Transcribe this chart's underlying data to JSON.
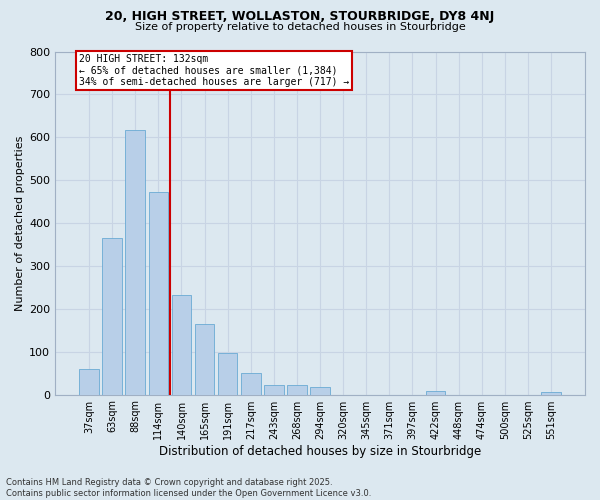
{
  "title1": "20, HIGH STREET, WOLLASTON, STOURBRIDGE, DY8 4NJ",
  "title2": "Size of property relative to detached houses in Stourbridge",
  "xlabel": "Distribution of detached houses by size in Stourbridge",
  "ylabel": "Number of detached properties",
  "bar_labels": [
    "37sqm",
    "63sqm",
    "88sqm",
    "114sqm",
    "140sqm",
    "165sqm",
    "191sqm",
    "217sqm",
    "243sqm",
    "268sqm",
    "294sqm",
    "320sqm",
    "345sqm",
    "371sqm",
    "397sqm",
    "422sqm",
    "448sqm",
    "474sqm",
    "500sqm",
    "525sqm",
    "551sqm"
  ],
  "bar_values": [
    60,
    365,
    617,
    473,
    233,
    165,
    97,
    50,
    22,
    22,
    18,
    0,
    0,
    0,
    0,
    8,
    0,
    0,
    0,
    0,
    7
  ],
  "bar_color": "#b8cfe8",
  "bar_edge_color": "#6aaad4",
  "red_line_x": 3.5,
  "red_line_label": "20 HIGH STREET: 132sqm",
  "annotation_line1": "← 65% of detached houses are smaller (1,384)",
  "annotation_line2": "34% of semi-detached houses are larger (717) →",
  "box_facecolor": "#ffffff",
  "box_edgecolor": "#cc0000",
  "ylim": [
    0,
    800
  ],
  "yticks": [
    0,
    100,
    200,
    300,
    400,
    500,
    600,
    700,
    800
  ],
  "grid_color": "#c8d4e4",
  "background_color": "#dce8f0",
  "fig_facecolor": "#dce8f0",
  "footer1": "Contains HM Land Registry data © Crown copyright and database right 2025.",
  "footer2": "Contains public sector information licensed under the Open Government Licence v3.0."
}
